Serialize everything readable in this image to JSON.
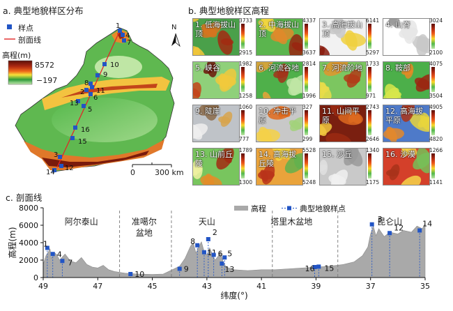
{
  "panel_a": {
    "title": "a. 典型地貌样区分布",
    "legend": {
      "sample_label": "样点",
      "profile_label": "剖面线",
      "elevation_title": "高程(m)",
      "elev_max": "8572",
      "elev_min": "−197"
    },
    "north_label": "N",
    "scale": {
      "start": "0",
      "end": "300 km"
    },
    "site_labels": [
      "1",
      "2",
      "3",
      "4",
      "5",
      "6",
      "7",
      "8",
      "9",
      "10",
      "11",
      "12",
      "13",
      "14",
      "15",
      "16"
    ],
    "colors": {
      "sample": "#2255c5",
      "profile": "#e02828"
    }
  },
  "panel_b": {
    "title": "b. 典型地貌样区高程",
    "tiles": [
      {
        "label": "1. 低海拔山顶",
        "max": "3733",
        "min": "2915"
      },
      {
        "label": "2. 中海拔山顶",
        "max": "4337",
        "min": "3637"
      },
      {
        "label": "3. 高海拔山顶",
        "max": "6141",
        "min": "5297"
      },
      {
        "label": "4. 山脊",
        "max": "3024",
        "min": "2100"
      },
      {
        "label": "5. 峡谷",
        "max": "1982",
        "min": "1258"
      },
      {
        "label": "6. 河流谷地",
        "max": "2814",
        "min": "1996"
      },
      {
        "label": "7. 河流阶地",
        "max": "1733",
        "min": "971"
      },
      {
        "label": "8. 鞍部",
        "max": "4075",
        "min": "3504"
      },
      {
        "label": "9. 陡崖",
        "max": "1060",
        "min": "777"
      },
      {
        "label": "10. 冲击平原",
        "max": "327",
        "min": "299"
      },
      {
        "label": "11. 山间平原",
        "max": "2743",
        "min": "2646"
      },
      {
        "label": "12. 高海拔平原",
        "max": "4905",
        "min": "4820"
      },
      {
        "label": "13. 山前丘陵",
        "max": "1789",
        "min": "1300"
      },
      {
        "label": "14. 高海拔丘陵",
        "max": "5528",
        "min": "5248"
      },
      {
        "label": "15. 沙丘",
        "max": "1340",
        "min": "1175"
      },
      {
        "label": "16. 沙漠",
        "max": "1266",
        "min": "1141"
      }
    ]
  },
  "panel_c": {
    "title": "c. 剖面线",
    "chart_data": {
      "type": "area",
      "xlabel": "纬度(°)",
      "ylabel": "高程(m)",
      "xlim": [
        49,
        35
      ],
      "ylim": [
        0,
        8000
      ],
      "x_ticks": [
        "49",
        "47",
        "45",
        "43",
        "41",
        "39",
        "37",
        "35"
      ],
      "y_ticks": [
        "0",
        "2000",
        "4000",
        "6000",
        "8000"
      ],
      "legend": [
        "高程",
        "典型地貌样点"
      ],
      "region_labels": [
        {
          "text": "阿尔泰山",
          "lat": 47.6
        },
        {
          "text": "准噶尔",
          "lat": 45.3
        },
        {
          "text": "盆地",
          "lat": 45.3
        },
        {
          "text": "天山",
          "lat": 43.0
        },
        {
          "text": "塔里木盆地",
          "lat": 39.9
        },
        {
          "text": "昆仑山",
          "lat": 36.3
        }
      ],
      "dividers": [
        46.2,
        44.3,
        40.6,
        38.2
      ],
      "profile": [
        [
          49.0,
          1500
        ],
        [
          48.9,
          2500
        ],
        [
          48.8,
          3000
        ],
        [
          48.75,
          3300
        ],
        [
          48.7,
          2200
        ],
        [
          48.6,
          2900
        ],
        [
          48.5,
          2600
        ],
        [
          48.4,
          2000
        ],
        [
          48.2,
          2700
        ],
        [
          48.0,
          1900
        ],
        [
          47.8,
          1700
        ],
        [
          47.6,
          2300
        ],
        [
          47.4,
          1500
        ],
        [
          47.2,
          1200
        ],
        [
          47.0,
          1100
        ],
        [
          46.8,
          1400
        ],
        [
          46.6,
          900
        ],
        [
          46.4,
          700
        ],
        [
          46.2,
          600
        ],
        [
          46.0,
          500
        ],
        [
          45.5,
          400
        ],
        [
          45.0,
          350
        ],
        [
          44.6,
          400
        ],
        [
          44.4,
          700
        ],
        [
          44.2,
          1000
        ],
        [
          44.0,
          1300
        ],
        [
          43.8,
          2200
        ],
        [
          43.6,
          3600
        ],
        [
          43.5,
          4000
        ],
        [
          43.4,
          2800
        ],
        [
          43.3,
          3500
        ],
        [
          43.2,
          4100
        ],
        [
          43.1,
          3000
        ],
        [
          43.0,
          2600
        ],
        [
          42.9,
          3400
        ],
        [
          42.8,
          2700
        ],
        [
          42.7,
          2000
        ],
        [
          42.6,
          2400
        ],
        [
          42.5,
          2900
        ],
        [
          42.4,
          1800
        ],
        [
          42.3,
          1200
        ],
        [
          42.2,
          1100
        ],
        [
          42.0,
          900
        ],
        [
          41.5,
          800
        ],
        [
          41.0,
          900
        ],
        [
          40.5,
          900
        ],
        [
          40.0,
          1000
        ],
        [
          39.5,
          1100
        ],
        [
          39.0,
          1200
        ],
        [
          38.5,
          1300
        ],
        [
          38.0,
          1500
        ],
        [
          37.6,
          1800
        ],
        [
          37.3,
          2500
        ],
        [
          37.1,
          3500
        ],
        [
          37.0,
          5000
        ],
        [
          36.9,
          5900
        ],
        [
          36.8,
          4800
        ],
        [
          36.7,
          5600
        ],
        [
          36.5,
          4700
        ],
        [
          36.3,
          5200
        ],
        [
          36.0,
          5000
        ],
        [
          35.8,
          5400
        ],
        [
          35.5,
          5200
        ],
        [
          35.3,
          5900
        ],
        [
          35.1,
          5600
        ],
        [
          35.0,
          6200
        ]
      ],
      "samples": [
        {
          "id": "1",
          "lat": 48.85,
          "elev": 3400
        },
        {
          "id": "3",
          "lat": 36.95,
          "elev": 6100
        },
        {
          "id": "4",
          "lat": 48.65,
          "elev": 2700
        },
        {
          "id": "7",
          "lat": 48.3,
          "elev": 1900
        },
        {
          "id": "10",
          "lat": 45.8,
          "elev": 400
        },
        {
          "id": "9",
          "lat": 44.0,
          "elev": 1000
        },
        {
          "id": "8",
          "lat": 43.35,
          "elev": 3700
        },
        {
          "id": "2",
          "lat": 42.95,
          "elev": 4400
        },
        {
          "id": "11",
          "lat": 43.1,
          "elev": 2900
        },
        {
          "id": "6",
          "lat": 42.75,
          "elev": 2600
        },
        {
          "id": "13",
          "lat": 42.45,
          "elev": 1600
        },
        {
          "id": "5",
          "lat": 42.35,
          "elev": 2300
        },
        {
          "id": "16",
          "lat": 39.05,
          "elev": 1200
        },
        {
          "id": "15",
          "lat": 38.9,
          "elev": 1250
        },
        {
          "id": "12",
          "lat": 36.3,
          "elev": 5100
        },
        {
          "id": "14",
          "lat": 35.2,
          "elev": 5400
        }
      ]
    }
  }
}
